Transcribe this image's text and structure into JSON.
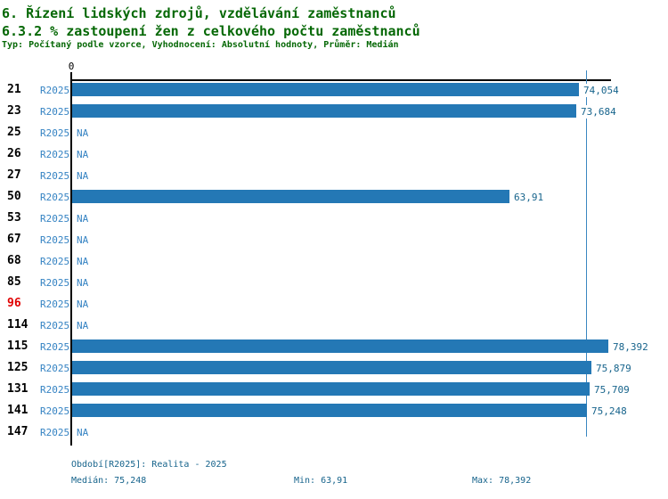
{
  "header": {
    "title": "6. Řízení lidských zdrojů, vzdělávání zaměstnanců",
    "subtitle": "6.3.2 % zastoupení žen z celkového počtu zaměstnanců",
    "meta": "Typ: Počítaný podle vzorce, Vyhodnocení: Absolutní hodnoty, Průměr: Medián"
  },
  "chart_data": {
    "type": "bar",
    "orientation": "horizontal",
    "title": "6.3.2 % zastoupení žen z celkového počtu zaměstnanců",
    "series_label": "R2025",
    "categories": [
      "21",
      "23",
      "25",
      "26",
      "27",
      "50",
      "53",
      "67",
      "68",
      "85",
      "96",
      "114",
      "115",
      "125",
      "131",
      "141",
      "147"
    ],
    "values": [
      74.054,
      73.684,
      null,
      null,
      null,
      63.91,
      null,
      null,
      null,
      null,
      null,
      null,
      78.392,
      75.879,
      75.709,
      75.248,
      null
    ],
    "value_labels": [
      "74,054",
      "73,684",
      "NA",
      "NA",
      "NA",
      "63,91",
      "NA",
      "NA",
      "NA",
      "NA",
      "NA",
      "NA",
      "78,392",
      "75,879",
      "75,709",
      "75,248",
      "NA"
    ],
    "na_label": "NA",
    "highlighted_category": "96",
    "x_axis": {
      "zero_label": "0",
      "min": 0,
      "max": 78.392,
      "grid": false
    },
    "median_value": 75.248,
    "legend_position": "none"
  },
  "footer": {
    "period": "Období[R2025]: Realita - 2025",
    "median": "Medián: 75,248",
    "min": "Min: 63,91",
    "max": "Max: 78,392"
  },
  "colors": {
    "title_green": "#066806",
    "bar_blue": "#2478b5",
    "series_blue": "#3583c3",
    "value_teal": "#17648c",
    "median_line_blue": "#3a87c0",
    "highlight_red": "#e00000",
    "axis_black": "#000000"
  }
}
